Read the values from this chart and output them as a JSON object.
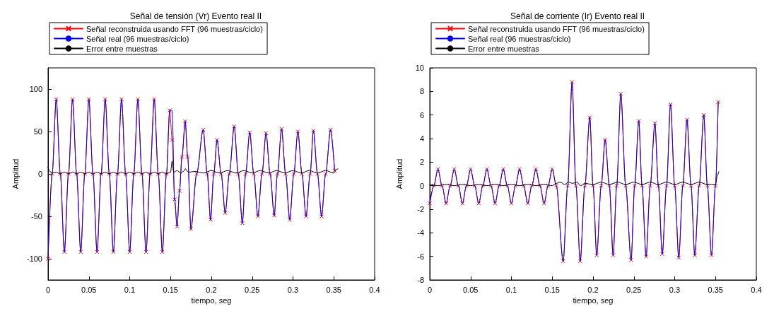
{
  "chart_data": [
    {
      "type": "line",
      "title": "Señal de tensión (Vr) Evento real II",
      "xlabel": "tiempo, seg",
      "ylabel": "Amplitud",
      "xlim": [
        0,
        0.4
      ],
      "xticks": [
        0,
        0.05,
        0.1,
        0.15,
        0.2,
        0.25,
        0.3,
        0.35,
        0.4
      ],
      "ylim": [
        -125,
        125
      ],
      "yticks": [
        -100,
        -50,
        0,
        50,
        100
      ],
      "grid": false,
      "legend": "top",
      "series": [
        {
          "name": "Señal reconstruida usando FFT (96 muestras/ciclo)",
          "color": "#ff0000",
          "marker": "cross",
          "x": [
            0,
            0.005,
            0.01,
            0.015,
            0.02,
            0.025,
            0.03,
            0.035,
            0.04,
            0.045,
            0.05,
            0.055,
            0.06,
            0.065,
            0.07,
            0.075,
            0.08,
            0.085,
            0.09,
            0.095,
            0.1,
            0.105,
            0.11,
            0.115,
            0.12,
            0.125,
            0.13,
            0.135,
            0.14,
            0.145,
            0.149,
            0.152,
            0.155,
            0.158,
            0.161,
            0.164,
            0.168,
            0.171,
            0.175,
            0.182,
            0.19,
            0.195,
            0.199,
            0.203,
            0.207,
            0.212,
            0.217,
            0.222,
            0.228,
            0.233,
            0.238,
            0.242,
            0.247,
            0.252,
            0.257,
            0.262,
            0.267,
            0.272,
            0.277,
            0.281,
            0.286,
            0.291,
            0.296,
            0.301,
            0.306,
            0.311,
            0.316,
            0.321,
            0.325,
            0.33,
            0.335,
            0.34,
            0.346,
            0.351
          ],
          "values": [
            -100,
            0,
            88,
            0,
            -92,
            0,
            88,
            0,
            -92,
            0,
            88,
            0,
            -92,
            0,
            88,
            0,
            -92,
            0,
            88,
            0,
            -92,
            0,
            88,
            0,
            -92,
            0,
            88,
            0,
            -92,
            0,
            75,
            40,
            -30,
            -62,
            -20,
            20,
            62,
            20,
            -65,
            0,
            52,
            0,
            -54,
            0,
            40,
            0,
            -46,
            0,
            56,
            0,
            -58,
            0,
            49,
            0,
            -50,
            0,
            48,
            0,
            -49,
            0,
            53,
            0,
            -54,
            0,
            50,
            0,
            -50,
            0,
            51,
            0,
            -50,
            0,
            52,
            4
          ]
        },
        {
          "name": "Señal real (96 muestras/ciclo)",
          "color": "#0000ff",
          "marker": "none",
          "x": [
            0,
            0.005,
            0.01,
            0.015,
            0.02,
            0.025,
            0.03,
            0.035,
            0.04,
            0.045,
            0.05,
            0.055,
            0.06,
            0.065,
            0.07,
            0.075,
            0.08,
            0.085,
            0.09,
            0.095,
            0.1,
            0.105,
            0.11,
            0.115,
            0.12,
            0.125,
            0.13,
            0.135,
            0.14,
            0.145,
            0.149,
            0.152,
            0.155,
            0.158,
            0.161,
            0.164,
            0.168,
            0.171,
            0.175,
            0.182,
            0.19,
            0.195,
            0.199,
            0.203,
            0.207,
            0.212,
            0.217,
            0.222,
            0.228,
            0.233,
            0.238,
            0.242,
            0.247,
            0.252,
            0.257,
            0.262,
            0.267,
            0.272,
            0.277,
            0.281,
            0.286,
            0.291,
            0.296,
            0.301,
            0.306,
            0.311,
            0.316,
            0.321,
            0.325,
            0.33,
            0.335,
            0.34,
            0.346,
            0.351
          ],
          "values": [
            -100,
            0,
            88,
            0,
            -92,
            0,
            88,
            0,
            -92,
            0,
            88,
            0,
            -92,
            0,
            88,
            0,
            -92,
            0,
            88,
            0,
            -92,
            0,
            88,
            0,
            -92,
            0,
            88,
            0,
            -92,
            0,
            75,
            75,
            -30,
            -62,
            -20,
            20,
            62,
            20,
            -65,
            0,
            52,
            0,
            -54,
            0,
            40,
            0,
            -46,
            0,
            56,
            0,
            -58,
            0,
            49,
            0,
            -50,
            0,
            48,
            0,
            -49,
            0,
            53,
            0,
            -54,
            0,
            50,
            0,
            -50,
            0,
            51,
            0,
            -50,
            0,
            52,
            4
          ]
        },
        {
          "name": "Error entre muestras",
          "color": "#000000",
          "marker": "none",
          "x": [
            0,
            0.002,
            0.005,
            0.01,
            0.015,
            0.02,
            0.025,
            0.03,
            0.035,
            0.04,
            0.045,
            0.05,
            0.055,
            0.06,
            0.065,
            0.07,
            0.075,
            0.08,
            0.085,
            0.09,
            0.095,
            0.1,
            0.105,
            0.11,
            0.115,
            0.12,
            0.125,
            0.13,
            0.135,
            0.14,
            0.145,
            0.15,
            0.152,
            0.154,
            0.158,
            0.162,
            0.166,
            0.168,
            0.172,
            0.18,
            0.19,
            0.2,
            0.21,
            0.22,
            0.23,
            0.24,
            0.25,
            0.26,
            0.27,
            0.28,
            0.29,
            0.3,
            0.31,
            0.32,
            0.33,
            0.34,
            0.35,
            0.353,
            0.355
          ],
          "values": [
            8,
            3,
            1,
            2,
            0,
            2,
            0,
            2,
            0,
            2,
            0,
            2,
            0,
            2,
            0,
            2,
            0,
            2,
            0,
            2,
            0,
            2,
            0,
            2,
            0,
            2,
            0,
            2,
            0,
            2,
            0,
            2,
            15,
            2,
            4,
            1,
            3,
            6,
            2,
            3,
            1,
            4,
            1,
            4,
            1,
            4,
            1,
            4,
            1,
            4,
            1,
            4,
            1,
            4,
            1,
            4,
            1,
            5,
            6
          ]
        }
      ]
    },
    {
      "type": "line",
      "title": "Señal de corriente (Ir) Evento real II",
      "xlabel": "tiempo, seg",
      "ylabel": "Amplitud",
      "xlim": [
        0,
        0.4
      ],
      "xticks": [
        0,
        0.05,
        0.1,
        0.15,
        0.2,
        0.25,
        0.3,
        0.35,
        0.4
      ],
      "ylim": [
        -8,
        10
      ],
      "yticks": [
        -8,
        -6,
        -4,
        -2,
        0,
        2,
        4,
        6,
        8,
        10
      ],
      "grid": false,
      "legend": "top",
      "series": [
        {
          "name": "Señal reconstruida usando FFT (96 muestras/ciclo)",
          "color": "#ff0000",
          "marker": "cross",
          "x": [
            0,
            0.005,
            0.01,
            0.015,
            0.02,
            0.025,
            0.03,
            0.035,
            0.04,
            0.045,
            0.05,
            0.055,
            0.06,
            0.065,
            0.07,
            0.075,
            0.08,
            0.085,
            0.09,
            0.095,
            0.1,
            0.105,
            0.11,
            0.115,
            0.12,
            0.125,
            0.13,
            0.135,
            0.14,
            0.145,
            0.15,
            0.155,
            0.1634,
            0.169,
            0.1743,
            0.179,
            0.1843,
            0.19,
            0.196,
            0.2,
            0.2045,
            0.21,
            0.2148,
            0.22,
            0.2246,
            0.229,
            0.234,
            0.24,
            0.2466,
            0.251,
            0.256,
            0.26,
            0.265,
            0.27,
            0.2758,
            0.28,
            0.2848,
            0.29,
            0.2949,
            0.3,
            0.305,
            0.31,
            0.3151,
            0.32,
            0.3246,
            0.33,
            0.3356,
            0.34,
            0.3451,
            0.35,
            0.3533
          ],
          "values": [
            -1.5,
            0,
            1.4,
            0,
            -1.5,
            0,
            1.4,
            0,
            -1.5,
            0,
            1.4,
            0,
            -1.5,
            0,
            1.4,
            0,
            -1.5,
            0,
            1.4,
            0,
            -1.5,
            0,
            1.4,
            0,
            -1.5,
            0,
            1.4,
            0,
            -1.5,
            0,
            1.4,
            0,
            -6.4,
            0,
            8.8,
            0,
            -6.4,
            0,
            5.8,
            0,
            -5.9,
            0,
            3.9,
            0,
            -5.9,
            0,
            7.8,
            0,
            -6.3,
            0,
            5.5,
            0,
            -6,
            0,
            5.3,
            0,
            -5.8,
            0,
            6.9,
            0,
            -6.1,
            0,
            5.6,
            0,
            -5.9,
            0,
            6,
            0,
            -5.9,
            0,
            7.1
          ]
        },
        {
          "name": "Señal real (96 muestras/ciclo)",
          "color": "#0000ff",
          "marker": "none",
          "x": [
            0,
            0.005,
            0.01,
            0.015,
            0.02,
            0.025,
            0.03,
            0.035,
            0.04,
            0.045,
            0.05,
            0.055,
            0.06,
            0.065,
            0.07,
            0.075,
            0.08,
            0.085,
            0.09,
            0.095,
            0.1,
            0.105,
            0.11,
            0.115,
            0.12,
            0.125,
            0.13,
            0.135,
            0.14,
            0.145,
            0.15,
            0.155,
            0.1634,
            0.169,
            0.1743,
            0.179,
            0.1843,
            0.19,
            0.196,
            0.2,
            0.2045,
            0.21,
            0.2148,
            0.22,
            0.2246,
            0.229,
            0.234,
            0.24,
            0.2466,
            0.251,
            0.256,
            0.26,
            0.265,
            0.27,
            0.2758,
            0.28,
            0.2848,
            0.29,
            0.2949,
            0.3,
            0.305,
            0.31,
            0.3151,
            0.32,
            0.3246,
            0.33,
            0.3356,
            0.34,
            0.3451,
            0.35,
            0.3533
          ],
          "values": [
            -1.5,
            0,
            1.4,
            0,
            -1.5,
            0,
            1.4,
            0,
            -1.5,
            0,
            1.4,
            0,
            -1.5,
            0,
            1.4,
            0,
            -1.5,
            0,
            1.4,
            0,
            -1.5,
            0,
            1.4,
            0,
            -1.5,
            0,
            1.4,
            0,
            -1.5,
            0,
            1.4,
            0,
            -6.4,
            0,
            8.8,
            0,
            -6.4,
            0,
            5.8,
            0,
            -5.9,
            0,
            3.9,
            0,
            -5.9,
            0,
            7.8,
            0,
            -6.3,
            0,
            5.5,
            0,
            -6,
            0,
            5.3,
            0,
            -5.8,
            0,
            6.9,
            0,
            -6.1,
            0,
            5.6,
            0,
            -5.9,
            0,
            6,
            0,
            -5.9,
            0,
            7.1
          ]
        },
        {
          "name": "Error entre muestras",
          "color": "#000000",
          "marker": "none",
          "x": [
            0,
            0.01,
            0.02,
            0.03,
            0.04,
            0.05,
            0.06,
            0.07,
            0.08,
            0.09,
            0.1,
            0.11,
            0.12,
            0.13,
            0.14,
            0.15,
            0.155,
            0.16,
            0.165,
            0.17,
            0.175,
            0.18,
            0.185,
            0.19,
            0.2,
            0.21,
            0.22,
            0.23,
            0.24,
            0.25,
            0.26,
            0.27,
            0.28,
            0.29,
            0.3,
            0.31,
            0.32,
            0.33,
            0.34,
            0.35,
            0.352,
            0.354
          ],
          "values": [
            0.1,
            0,
            0.1,
            0,
            0.1,
            0,
            0.1,
            0,
            0.1,
            0,
            0.1,
            0,
            0.1,
            0,
            0.1,
            0,
            0.2,
            0.3,
            0.1,
            0.3,
            0.2,
            0.3,
            0,
            0.2,
            0.1,
            0.3,
            0.1,
            0.3,
            0.1,
            0.3,
            0.1,
            0.3,
            0.1,
            0.3,
            0.1,
            0.3,
            0.1,
            0.3,
            0.1,
            0.1,
            0.8,
            1.2
          ]
        }
      ]
    }
  ]
}
